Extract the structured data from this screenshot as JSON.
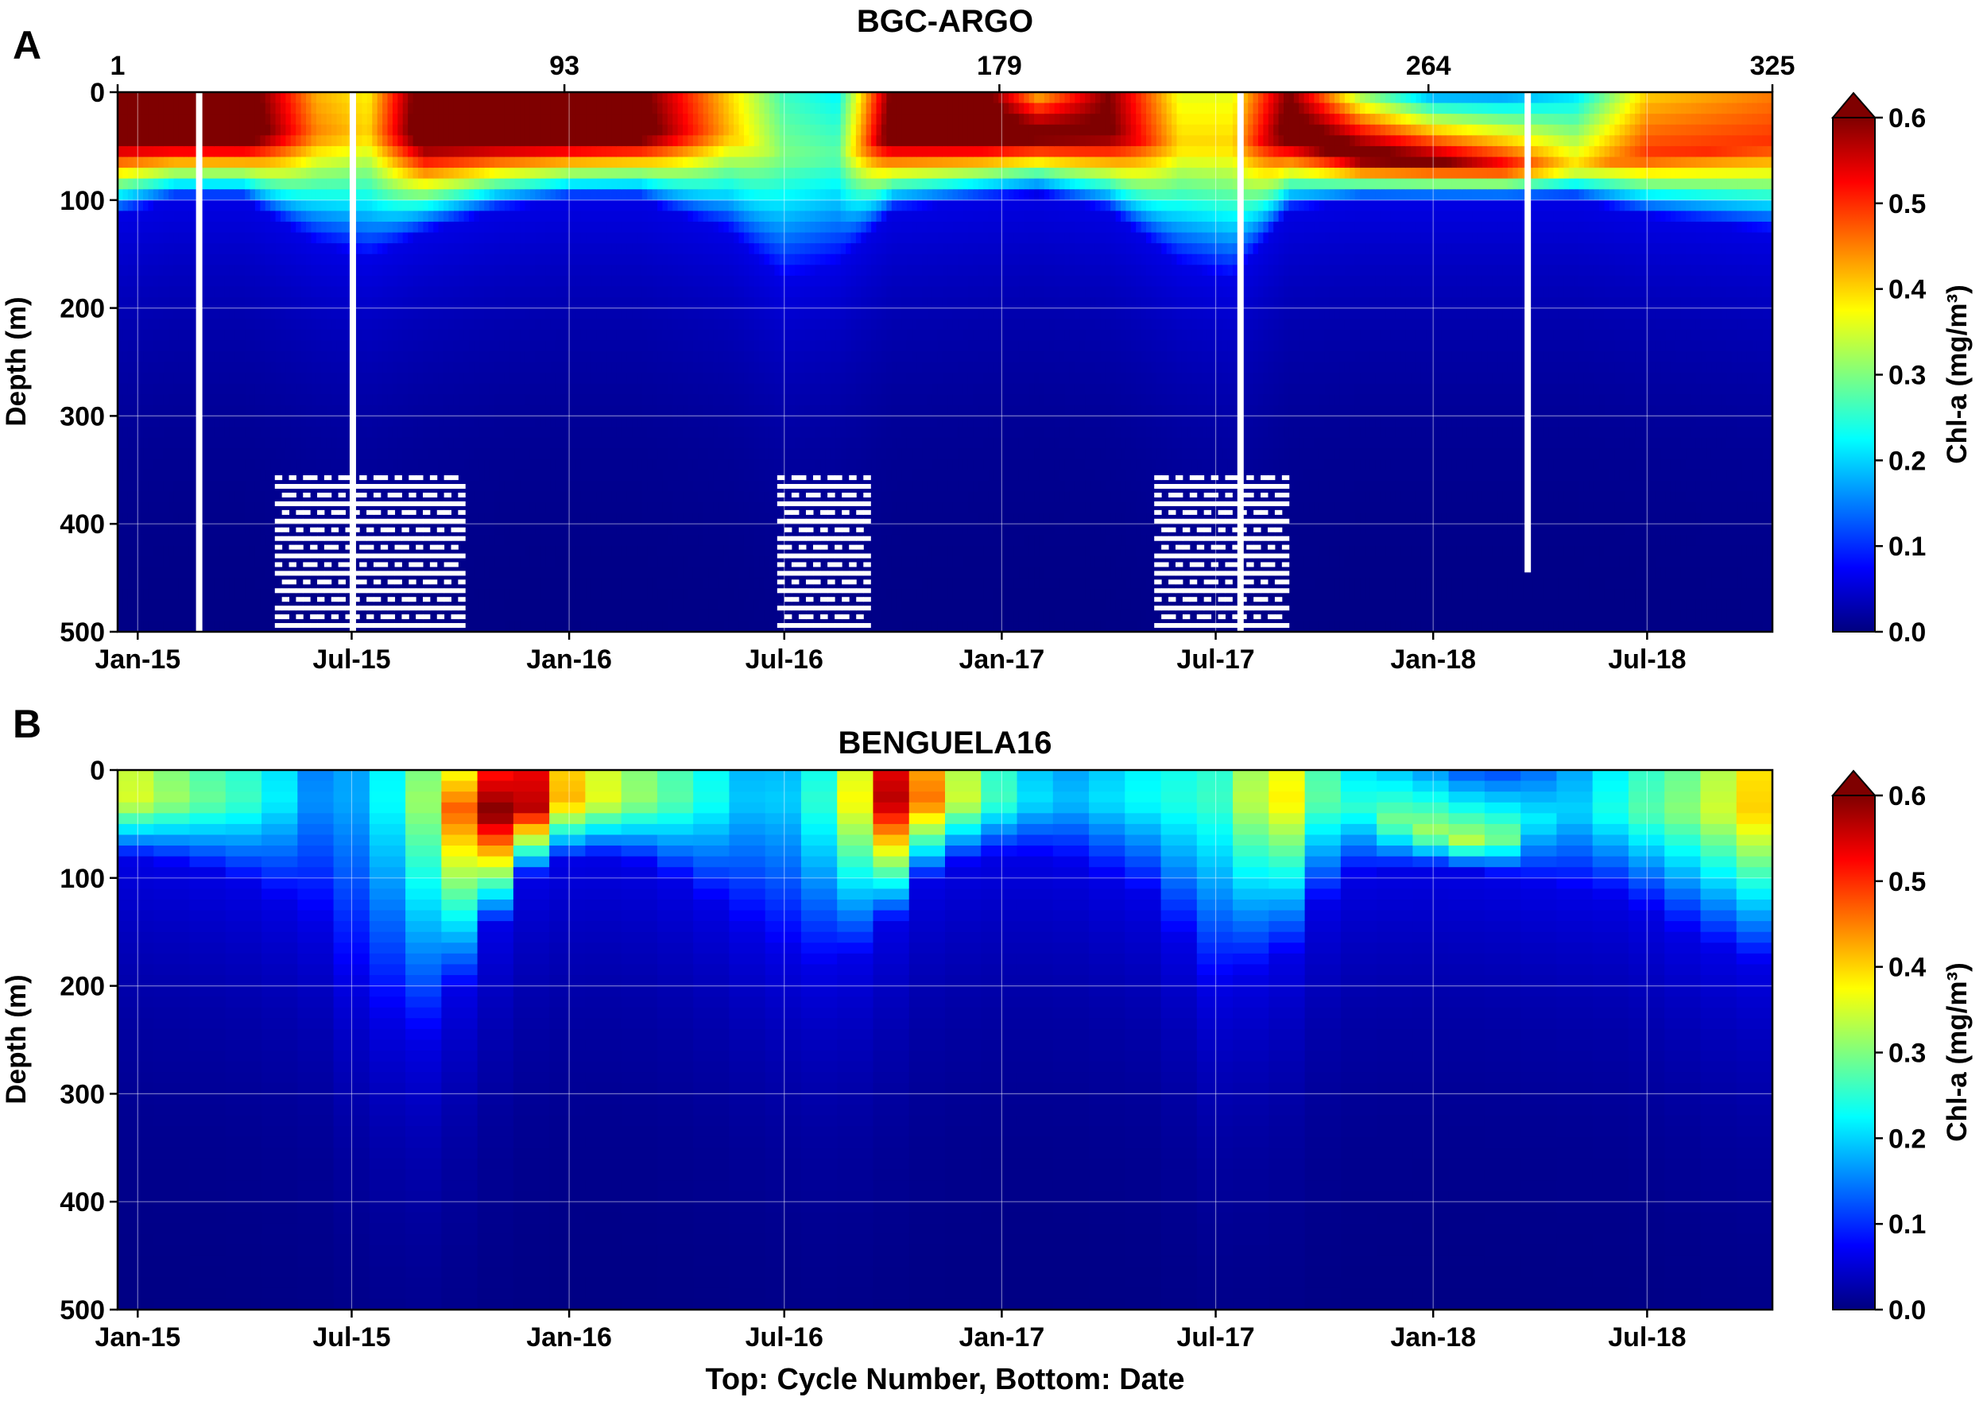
{
  "figure": {
    "xlabel": "Top: Cycle Number, Bottom: Date"
  },
  "colorscale": {
    "name": "jet",
    "stops": [
      "#00007f",
      "#0000ff",
      "#007fff",
      "#00ffff",
      "#7fff7f",
      "#ffff00",
      "#ff7f00",
      "#ff0000",
      "#7f0000"
    ],
    "over_color": "#7f0000",
    "nan_color": "#ffffff"
  },
  "chart_data": [
    {
      "type": "heatmap",
      "panel_label": "A",
      "title": "BGC-ARGO",
      "ylabel": "Depth (m)",
      "ylim": [
        500,
        0
      ],
      "yticks": [
        "0",
        "100",
        "200",
        "300",
        "400",
        "500"
      ],
      "x_start": "2014-12-15",
      "x_end": "2018-10-15",
      "xticks": [
        {
          "date": "2015-01-01",
          "label": "Jan-15"
        },
        {
          "date": "2015-07-01",
          "label": "Jul-15"
        },
        {
          "date": "2016-01-01",
          "label": "Jan-16"
        },
        {
          "date": "2016-07-01",
          "label": "Jul-16"
        },
        {
          "date": "2017-01-01",
          "label": "Jan-17"
        },
        {
          "date": "2017-07-01",
          "label": "Jul-17"
        },
        {
          "date": "2018-01-01",
          "label": "Jan-18"
        },
        {
          "date": "2018-07-01",
          "label": "Jul-18"
        }
      ],
      "top_axis": {
        "ticks": [
          {
            "date": "2014-12-15",
            "label": "1"
          },
          {
            "date": "2015-12-28",
            "label": "93"
          },
          {
            "date": "2016-12-30",
            "label": "179"
          },
          {
            "date": "2017-12-28",
            "label": "264"
          },
          {
            "date": "2018-10-15",
            "label": "325"
          }
        ]
      },
      "colorbar": {
        "label": "Chl-a (mg/m³)",
        "vmin": 0.0,
        "vmax": 0.6,
        "ticks": [
          "0.0",
          "0.1",
          "0.2",
          "0.3",
          "0.4",
          "0.5",
          "0.6"
        ],
        "extend": "max"
      },
      "grid": true,
      "profiles": [
        {
          "date": "2014-12-15",
          "surface": 0.62,
          "dcm_depth": 40,
          "dcm_value": 0.66,
          "bottom": 115
        },
        {
          "date": "2015-02-01",
          "surface": 0.64,
          "dcm_depth": 40,
          "dcm_value": 0.68,
          "bottom": 100
        },
        {
          "date": "2015-04-01",
          "surface": 0.65,
          "dcm_depth": 40,
          "dcm_value": 0.68,
          "bottom": 100
        },
        {
          "date": "2015-06-01",
          "surface": 0.42,
          "dcm_depth": 40,
          "dcm_value": 0.45,
          "bottom": 140
        },
        {
          "date": "2015-07-15",
          "surface": 0.38,
          "dcm_depth": 40,
          "dcm_value": 0.4,
          "bottom": 155
        },
        {
          "date": "2015-09-01",
          "surface": 0.66,
          "dcm_depth": 40,
          "dcm_value": 0.68,
          "bottom": 130
        },
        {
          "date": "2015-11-01",
          "surface": 0.65,
          "dcm_depth": 40,
          "dcm_value": 0.68,
          "bottom": 110
        },
        {
          "date": "2016-01-01",
          "surface": 0.66,
          "dcm_depth": 40,
          "dcm_value": 0.68,
          "bottom": 100
        },
        {
          "date": "2016-03-01",
          "surface": 0.62,
          "dcm_depth": 40,
          "dcm_value": 0.65,
          "bottom": 100
        },
        {
          "date": "2016-05-15",
          "surface": 0.4,
          "dcm_depth": 40,
          "dcm_value": 0.42,
          "bottom": 130
        },
        {
          "date": "2016-07-01",
          "surface": 0.26,
          "dcm_depth": 60,
          "dcm_value": 0.3,
          "bottom": 175
        },
        {
          "date": "2016-08-15",
          "surface": 0.22,
          "dcm_depth": 60,
          "dcm_value": 0.28,
          "bottom": 160
        },
        {
          "date": "2016-10-01",
          "surface": 0.62,
          "dcm_depth": 40,
          "dcm_value": 0.66,
          "bottom": 110
        },
        {
          "date": "2016-12-15",
          "surface": 0.64,
          "dcm_depth": 40,
          "dcm_value": 0.68,
          "bottom": 100
        },
        {
          "date": "2017-02-01",
          "surface": 0.4,
          "dcm_depth": 40,
          "dcm_value": 0.65,
          "bottom": 95
        },
        {
          "date": "2017-04-01",
          "surface": 0.6,
          "dcm_depth": 40,
          "dcm_value": 0.62,
          "bottom": 110
        },
        {
          "date": "2017-06-01",
          "surface": 0.36,
          "dcm_depth": 50,
          "dcm_value": 0.4,
          "bottom": 160
        },
        {
          "date": "2017-07-15",
          "surface": 0.36,
          "dcm_depth": 50,
          "dcm_value": 0.4,
          "bottom": 175
        },
        {
          "date": "2017-09-01",
          "surface": 0.6,
          "dcm_depth": 40,
          "dcm_value": 0.65,
          "bottom": 110
        },
        {
          "date": "2017-11-01",
          "surface": 0.3,
          "dcm_depth": 60,
          "dcm_value": 0.66,
          "bottom": 100
        },
        {
          "date": "2018-01-01",
          "surface": 0.15,
          "dcm_depth": 65,
          "dcm_value": 0.62,
          "bottom": 100
        },
        {
          "date": "2018-03-01",
          "surface": 0.15,
          "dcm_depth": 70,
          "dcm_value": 0.55,
          "bottom": 100
        },
        {
          "date": "2018-05-01",
          "surface": 0.2,
          "dcm_depth": 70,
          "dcm_value": 0.4,
          "bottom": 100
        },
        {
          "date": "2018-07-01",
          "surface": 0.4,
          "dcm_depth": 60,
          "dcm_value": 0.5,
          "bottom": 115
        },
        {
          "date": "2018-10-15",
          "surface": 0.45,
          "dcm_depth": 50,
          "dcm_value": 0.5,
          "bottom": 130
        }
      ],
      "gaps": [
        {
          "date": "2015-02-22",
          "depth_from": 0,
          "depth_to": 500
        },
        {
          "date": "2015-07-02",
          "depth_from": 0,
          "depth_to": 500
        },
        {
          "date": "2017-07-22",
          "depth_from": 0,
          "depth_to": 500
        },
        {
          "date": "2018-03-22",
          "depth_from": 0,
          "depth_to": 445
        }
      ],
      "sparse_blocks": [
        {
          "date_from": "2015-04-27",
          "date_to": "2015-10-05",
          "depth_from": 355,
          "depth_to": 500
        },
        {
          "date_from": "2016-06-25",
          "date_to": "2016-09-12",
          "depth_from": 355,
          "depth_to": 500
        },
        {
          "date_from": "2017-05-10",
          "date_to": "2017-09-01",
          "depth_from": 355,
          "depth_to": 500
        }
      ]
    },
    {
      "type": "heatmap",
      "panel_label": "B",
      "title": "BENGUELA16",
      "ylabel": "Depth (m)",
      "ylim": [
        500,
        0
      ],
      "yticks": [
        "0",
        "100",
        "200",
        "300",
        "400",
        "500"
      ],
      "x_start": "2014-12-15",
      "x_end": "2018-10-15",
      "xticks": [
        {
          "date": "2015-01-01",
          "label": "Jan-15"
        },
        {
          "date": "2015-07-01",
          "label": "Jul-15"
        },
        {
          "date": "2016-01-01",
          "label": "Jan-16"
        },
        {
          "date": "2016-07-01",
          "label": "Jul-16"
        },
        {
          "date": "2017-01-01",
          "label": "Jan-17"
        },
        {
          "date": "2017-07-01",
          "label": "Jul-17"
        },
        {
          "date": "2018-01-01",
          "label": "Jan-18"
        },
        {
          "date": "2018-07-01",
          "label": "Jul-18"
        }
      ],
      "colorbar": {
        "label": "Chl-a (mg/m³)",
        "vmin": 0.0,
        "vmax": 0.6,
        "ticks": [
          "0.0",
          "0.1",
          "0.2",
          "0.3",
          "0.4",
          "0.5",
          "0.6"
        ],
        "extend": "max"
      },
      "grid": true,
      "profiles": [
        {
          "date": "2014-12-15",
          "surface": 0.36,
          "dcm_depth": 30,
          "dcm_value": 0.37,
          "bottom": 80
        },
        {
          "date": "2015-02-15",
          "surface": 0.28,
          "dcm_depth": 30,
          "dcm_value": 0.3,
          "bottom": 90
        },
        {
          "date": "2015-04-15",
          "surface": 0.24,
          "dcm_depth": 30,
          "dcm_value": 0.25,
          "bottom": 110
        },
        {
          "date": "2015-06-01",
          "surface": 0.15,
          "dcm_depth": 30,
          "dcm_value": 0.16,
          "bottom": 140
        },
        {
          "date": "2015-07-15",
          "surface": 0.18,
          "dcm_depth": 30,
          "dcm_value": 0.18,
          "bottom": 220
        },
        {
          "date": "2015-09-01",
          "surface": 0.3,
          "dcm_depth": 30,
          "dcm_value": 0.32,
          "bottom": 250
        },
        {
          "date": "2015-10-15",
          "surface": 0.4,
          "dcm_depth": 40,
          "dcm_value": 0.55,
          "bottom": 180
        },
        {
          "date": "2015-11-15",
          "surface": 0.62,
          "dcm_depth": 40,
          "dcm_value": 0.66,
          "bottom": 110
        },
        {
          "date": "2015-12-20",
          "surface": 0.42,
          "dcm_depth": 30,
          "dcm_value": 0.44,
          "bottom": 85
        },
        {
          "date": "2016-02-15",
          "surface": 0.32,
          "dcm_depth": 30,
          "dcm_value": 0.33,
          "bottom": 80
        },
        {
          "date": "2016-04-15",
          "surface": 0.25,
          "dcm_depth": 30,
          "dcm_value": 0.26,
          "bottom": 110
        },
        {
          "date": "2016-06-15",
          "surface": 0.16,
          "dcm_depth": 30,
          "dcm_value": 0.17,
          "bottom": 160
        },
        {
          "date": "2016-08-15",
          "surface": 0.26,
          "dcm_depth": 30,
          "dcm_value": 0.28,
          "bottom": 190
        },
        {
          "date": "2016-10-01",
          "surface": 0.55,
          "dcm_depth": 30,
          "dcm_value": 0.58,
          "bottom": 140
        },
        {
          "date": "2016-11-01",
          "surface": 0.42,
          "dcm_depth": 30,
          "dcm_value": 0.45,
          "bottom": 100
        },
        {
          "date": "2016-12-15",
          "surface": 0.28,
          "dcm_depth": 30,
          "dcm_value": 0.29,
          "bottom": 80
        },
        {
          "date": "2017-02-15",
          "surface": 0.16,
          "dcm_depth": 30,
          "dcm_value": 0.18,
          "bottom": 80
        },
        {
          "date": "2017-05-01",
          "surface": 0.22,
          "dcm_depth": 30,
          "dcm_value": 0.23,
          "bottom": 115
        },
        {
          "date": "2017-07-01",
          "surface": 0.25,
          "dcm_depth": 30,
          "dcm_value": 0.26,
          "bottom": 200
        },
        {
          "date": "2017-08-25",
          "surface": 0.38,
          "dcm_depth": 30,
          "dcm_value": 0.4,
          "bottom": 180
        },
        {
          "date": "2017-10-15",
          "surface": 0.22,
          "dcm_depth": 30,
          "dcm_value": 0.23,
          "bottom": 100
        },
        {
          "date": "2017-12-15",
          "surface": 0.18,
          "dcm_depth": 55,
          "dcm_value": 0.32,
          "bottom": 90
        },
        {
          "date": "2018-02-15",
          "surface": 0.1,
          "dcm_depth": 70,
          "dcm_value": 0.34,
          "bottom": 95
        },
        {
          "date": "2018-04-15",
          "surface": 0.15,
          "dcm_depth": 40,
          "dcm_value": 0.18,
          "bottom": 110
        },
        {
          "date": "2018-06-15",
          "surface": 0.24,
          "dcm_depth": 40,
          "dcm_value": 0.26,
          "bottom": 120
        },
        {
          "date": "2018-08-15",
          "surface": 0.3,
          "dcm_depth": 40,
          "dcm_value": 0.32,
          "bottom": 160
        },
        {
          "date": "2018-10-15",
          "surface": 0.42,
          "dcm_depth": 40,
          "dcm_value": 0.43,
          "bottom": 185
        }
      ],
      "gaps": [],
      "sparse_blocks": []
    }
  ]
}
